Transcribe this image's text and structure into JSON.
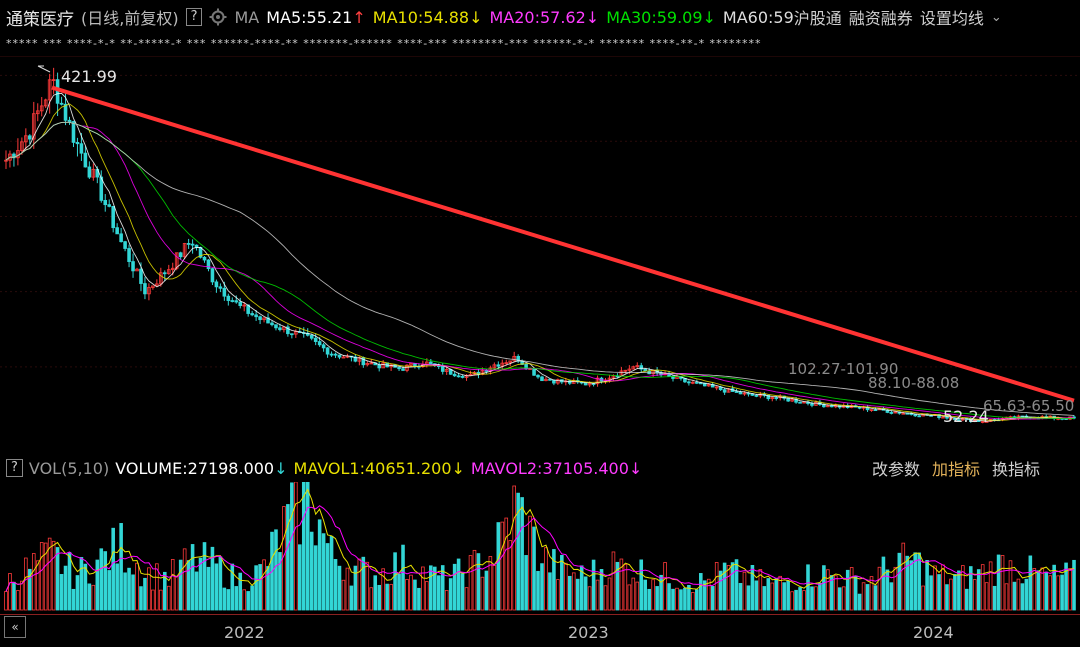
{
  "header": {
    "title": "通策医疗",
    "subtitle": "(日线,前复权)",
    "help": "?",
    "ma_label": "MA",
    "ma5": "MA5:55.21",
    "ma5_arrow": "↑",
    "ma10": "MA10:54.88",
    "ma10_arrow": "↓",
    "ma20": "MA20:57.62",
    "ma20_arrow": "↓",
    "ma30": "MA30:59.09",
    "ma30_arrow": "↓",
    "ma60": "MA60:59",
    "hsgt": "沪股通",
    "margin": "融资融券",
    "settings": "设置均线"
  },
  "volume_header": {
    "help": "?",
    "vol": "VOL(5,10)",
    "volume": "VOLUME:27198.000",
    "volume_arrow": "↓",
    "mavol1": "MAVOL1:40651.200",
    "mavol1_arrow": "↓",
    "mavol2": "MAVOL2:37105.400",
    "mavol2_arrow": "↓",
    "change_params": "改参数",
    "add_indicator": "加指标",
    "switch_indicator": "换指标"
  },
  "ticker_text": "*****  ***  ****-*-*  **-*****-*  ***  ******-****-**  *******-******  ****-***  ********-***  ******-*-*  *******  ****-**-*  ********",
  "colors": {
    "ma5": "#ffffff",
    "ma10": "#e8e000",
    "ma20": "#ff00ff",
    "ma30": "#00dd00",
    "ma60": "#d0d0d0",
    "up": "#ff3a3a",
    "down": "#33d6d6",
    "trendline": "#ff3333"
  },
  "chart_data": {
    "type": "candlestick",
    "instrument": "通策医疗",
    "period": "日线,前复权",
    "x_ticks": [
      "2022",
      "2023",
      "2024"
    ],
    "annotations": {
      "high": 421.99,
      "low": 52.24,
      "ranges": [
        "102.27-101.90",
        "88.10-88.08",
        "65.63-65.50"
      ]
    },
    "moving_averages": {
      "MA5": 55.21,
      "MA10": 54.88,
      "MA20": 57.62,
      "MA30": 59.09,
      "MA60": 59
    },
    "trendline": {
      "from_price": 421.99,
      "to_price": 65.63
    },
    "close_series_approx": [
      330,
      360,
      415,
      350,
      300,
      240,
      190,
      215,
      245,
      200,
      175,
      160,
      150,
      140,
      125,
      118,
      112,
      108,
      115,
      105,
      100,
      112,
      120,
      98,
      94,
      92,
      100,
      110,
      103,
      96,
      90,
      85,
      80,
      78,
      74,
      70,
      68,
      66,
      63,
      60,
      58,
      55,
      52.24,
      55,
      57,
      56,
      55.21
    ],
    "volume": {
      "last": 27198.0,
      "mavol1": 40651.2,
      "mavol2": 37105.4,
      "series_approx": [
        30,
        45,
        60,
        38,
        52,
        70,
        40,
        35,
        55,
        48,
        32,
        41,
        90,
        125,
        60,
        45,
        38,
        52,
        40,
        33,
        45,
        60,
        115,
        58,
        42,
        36,
        50,
        44,
        38,
        34,
        30,
        42,
        35,
        28,
        33,
        40,
        36,
        30,
        45,
        55,
        38,
        34,
        40,
        50,
        42,
        35,
        38
      ]
    }
  }
}
